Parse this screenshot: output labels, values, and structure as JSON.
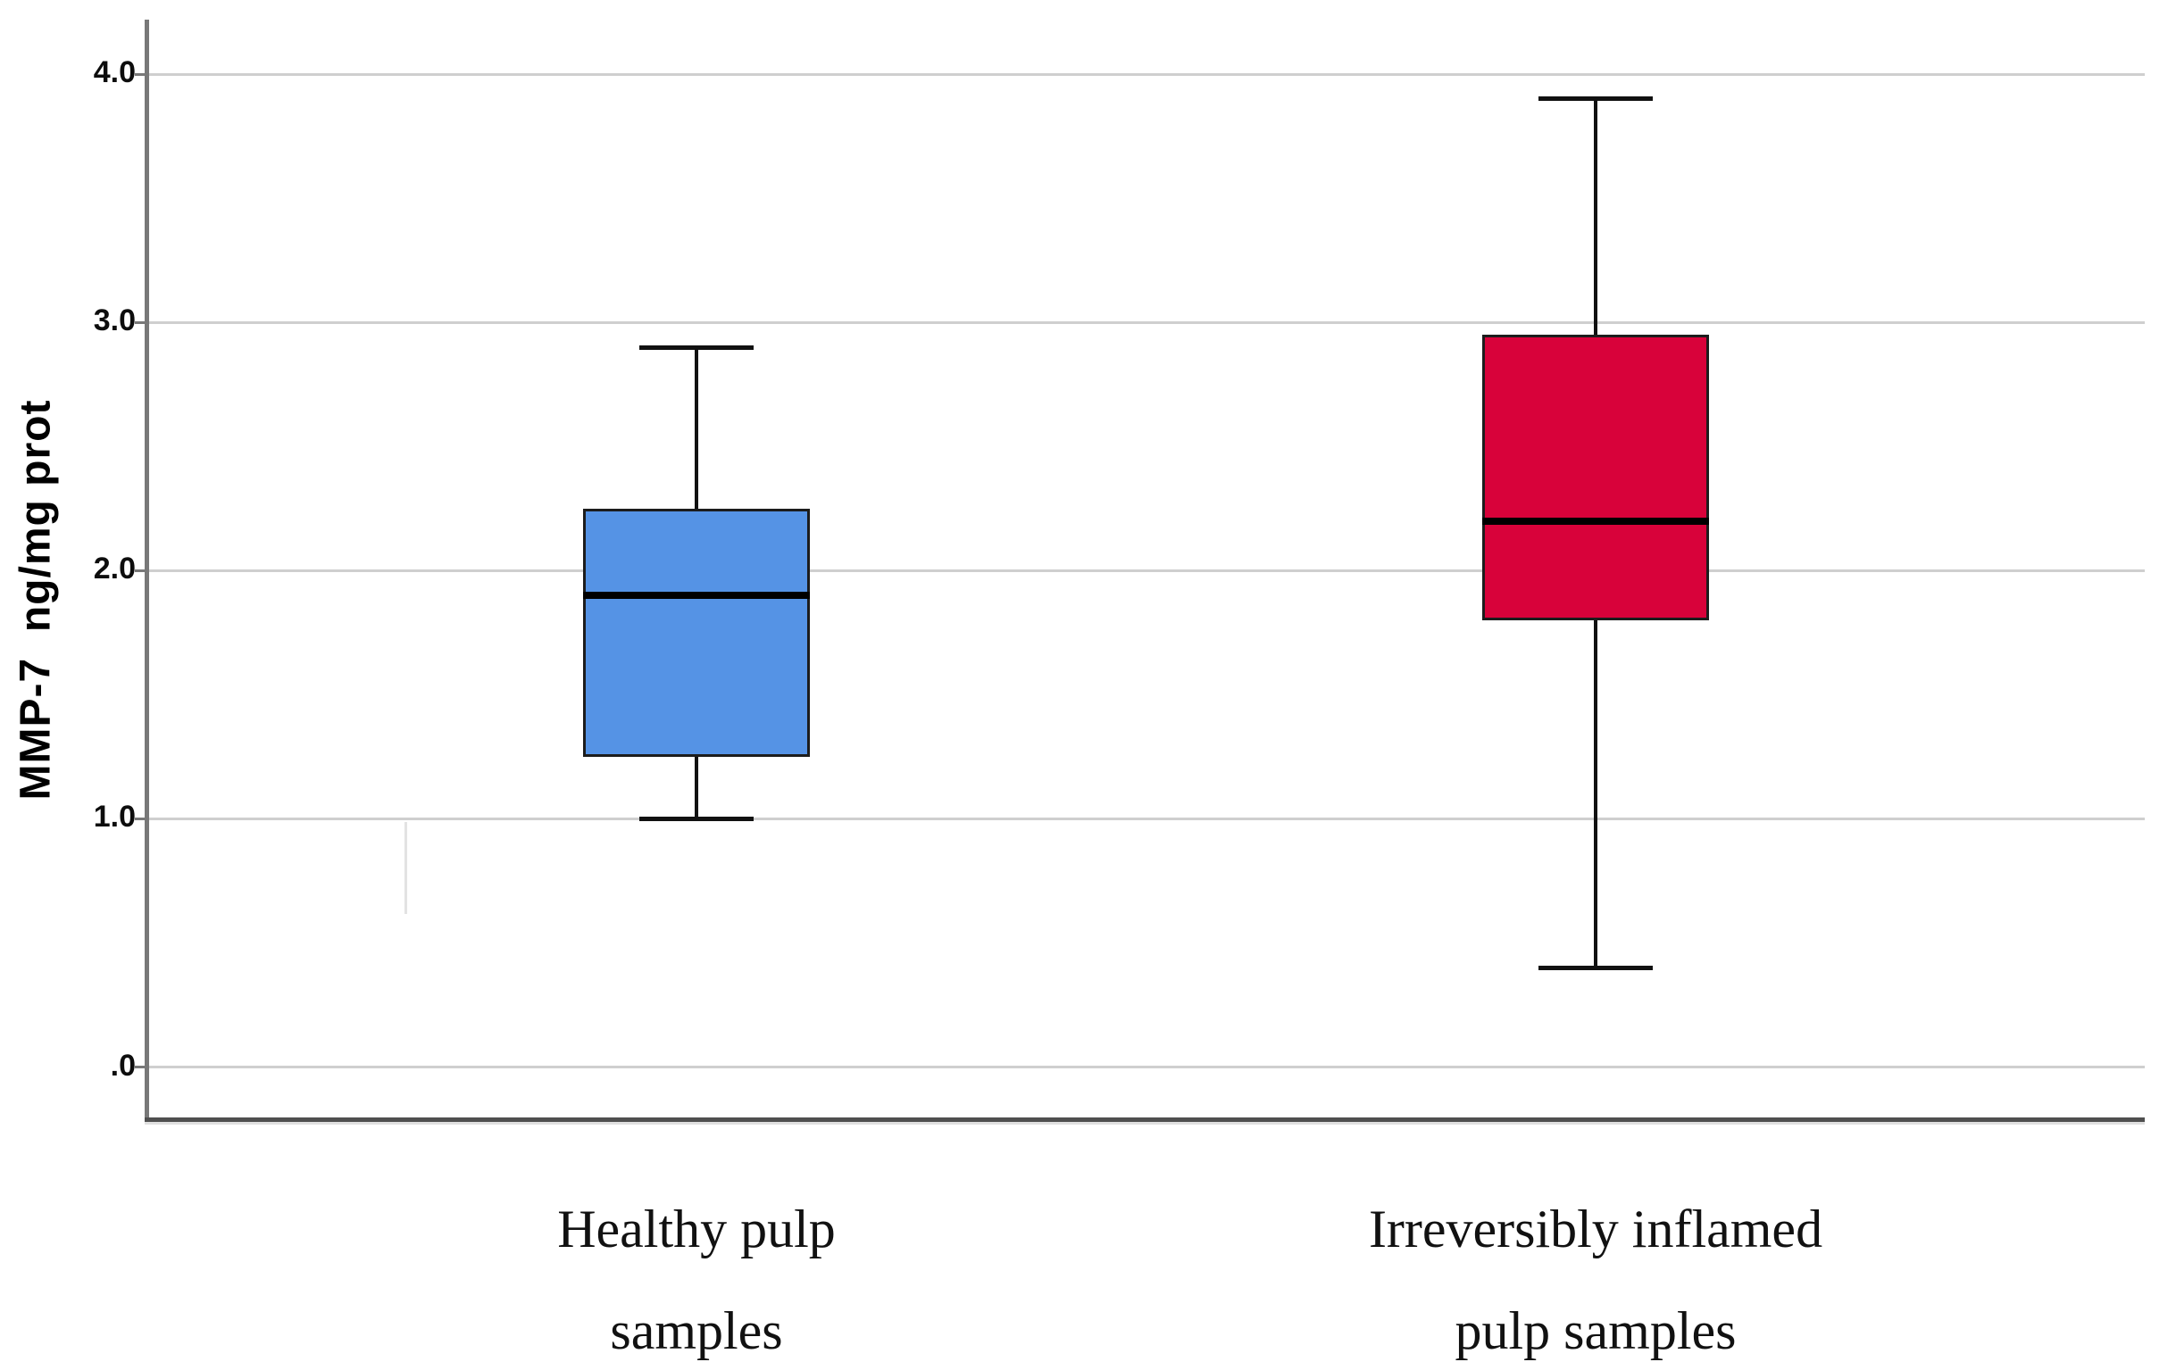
{
  "figure": {
    "background": "#ffffff"
  },
  "chart_data": {
    "type": "box",
    "title": "",
    "xlabel": "",
    "ylabel": "MMP-7  ng/mg prot",
    "ylim": [
      -0.21,
      4.22
    ],
    "grid": "horizontal gridlines at each y tick, light gray, no top/right frame",
    "legend": "none",
    "yticks": [
      {
        "value": 0,
        "label": ".0"
      },
      {
        "value": 1,
        "label": "1.0"
      },
      {
        "value": 2,
        "label": "2.0"
      },
      {
        "value": 3,
        "label": "3.0"
      },
      {
        "value": 4,
        "label": "4.0"
      }
    ],
    "categories": [
      {
        "key": "healthy",
        "label": "Healthy pulp samples",
        "label_lines": [
          "Healthy pulp",
          "samples"
        ],
        "color": "#5593E5",
        "stats": {
          "min": 1.0,
          "q1": 1.25,
          "median": 1.9,
          "q3": 2.25,
          "max": 2.9
        }
      },
      {
        "key": "inflamed",
        "label": "Irreversibly inflamed pulp samples",
        "label_lines": [
          "Irreversibly inflamed",
          "pulp samples"
        ],
        "color": "#D8023A",
        "stats": {
          "min": 0.4,
          "q1": 1.8,
          "median": 2.2,
          "q3": 2.95,
          "max": 3.9
        }
      }
    ],
    "style_colors": {
      "gridline": "#cfcfcf",
      "y_axis_line": "#787878",
      "x_axis_line": "#4f4f4f",
      "box_border": "#1c1c1c",
      "median_line": "#000000",
      "whisker": "#111111",
      "tick_text": "#0d0d0d"
    }
  }
}
